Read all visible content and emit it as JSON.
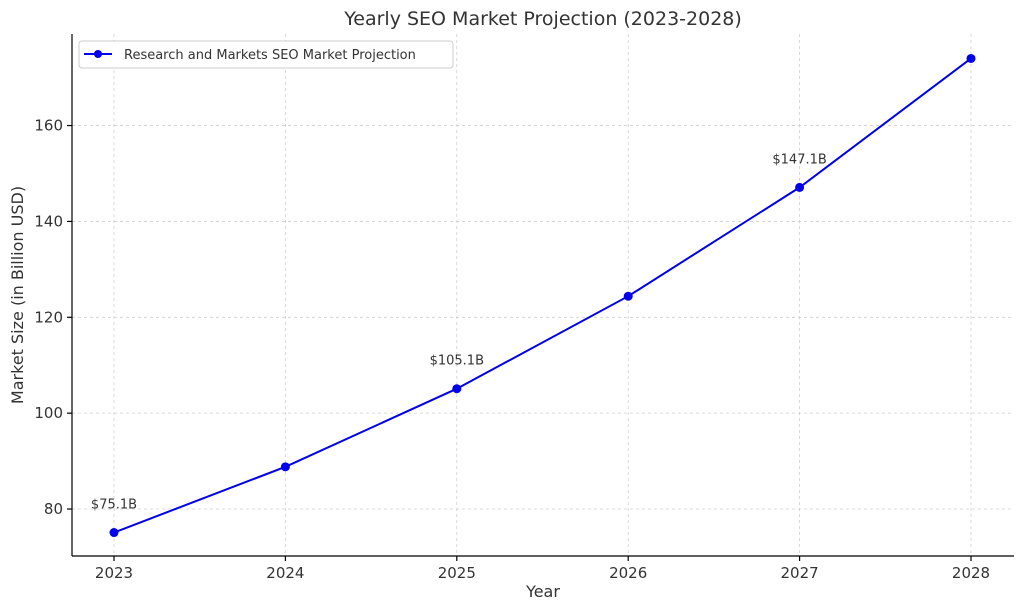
{
  "chart_data": {
    "type": "line",
    "title": "Yearly SEO Market Projection (2023-2028)",
    "xlabel": "Year",
    "ylabel": "Market Size (in Billion USD)",
    "x": [
      2023,
      2024,
      2025,
      2026,
      2027,
      2028
    ],
    "xticks": [
      "2023",
      "2024",
      "2025",
      "2026",
      "2027",
      "2028"
    ],
    "yticks": [
      "80",
      "100",
      "120",
      "140",
      "160"
    ],
    "ylim": [
      70.2,
      179.1
    ],
    "grid": true,
    "legend_position": "top-left",
    "series": [
      {
        "name": "Research and Markets SEO Market Projection",
        "values": [
          75.1,
          88.8,
          105.1,
          124.4,
          147.1,
          174.0
        ],
        "color": "#0000ee"
      }
    ],
    "annotations": [
      {
        "x": 2023,
        "value": 75.1,
        "text": "$75.1B"
      },
      {
        "x": 2025,
        "value": 105.1,
        "text": "$105.1B"
      },
      {
        "x": 2027,
        "value": 147.1,
        "text": "$147.1B"
      }
    ]
  }
}
